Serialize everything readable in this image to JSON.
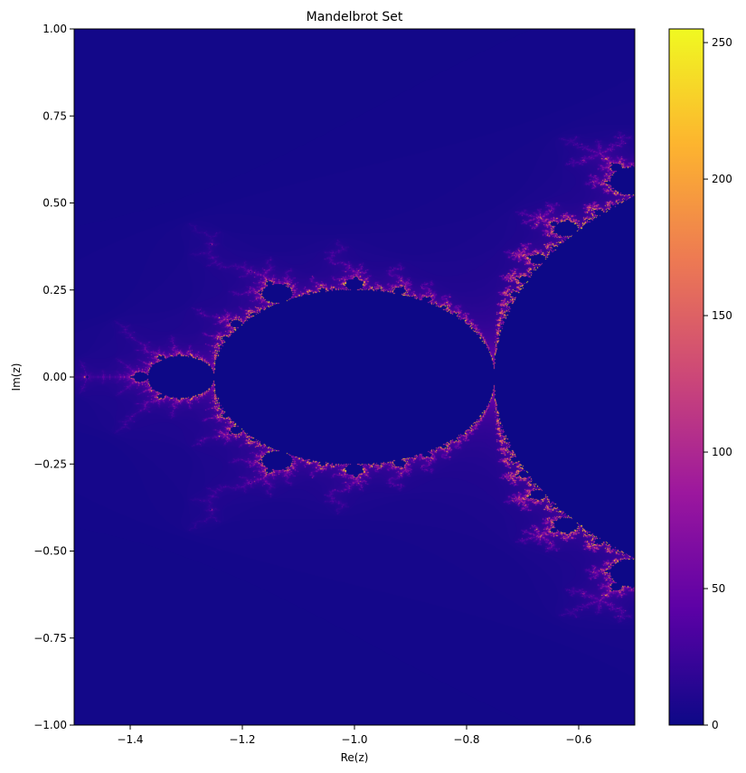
{
  "chart_data": {
    "type": "heatmap",
    "title": "Mandelbrot Set",
    "xlabel": "Re(z)",
    "ylabel": "Im(z)",
    "xlim": [
      -1.5,
      -0.5
    ],
    "ylim": [
      -1.0,
      1.0
    ],
    "x_ticks": [
      {
        "value": -1.4,
        "label": "−1.4"
      },
      {
        "value": -1.2,
        "label": "−1.2"
      },
      {
        "value": -1.0,
        "label": "−1.0"
      },
      {
        "value": -0.8,
        "label": "−0.8"
      },
      {
        "value": -0.6,
        "label": "−0.6"
      }
    ],
    "y_ticks": [
      {
        "value": 1.0,
        "label": "1.00"
      },
      {
        "value": 0.75,
        "label": "0.75"
      },
      {
        "value": 0.5,
        "label": "0.50"
      },
      {
        "value": 0.25,
        "label": "0.25"
      },
      {
        "value": 0.0,
        "label": "0.00"
      },
      {
        "value": -0.25,
        "label": "−0.25"
      },
      {
        "value": -0.5,
        "label": "−0.50"
      },
      {
        "value": -0.75,
        "label": "−0.75"
      },
      {
        "value": -1.0,
        "label": "−1.00"
      }
    ],
    "colormap": "plasma",
    "colorbar": {
      "range": [
        0,
        255
      ],
      "ticks": [
        {
          "value": 0,
          "label": "0"
        },
        {
          "value": 50,
          "label": "50"
        },
        {
          "value": 100,
          "label": "100"
        },
        {
          "value": 150,
          "label": "150"
        },
        {
          "value": 200,
          "label": "200"
        },
        {
          "value": 250,
          "label": "250"
        }
      ]
    },
    "max_iterations": 255,
    "grid": false
  },
  "colors": {
    "background": "#0d0887",
    "colormap_stops": [
      "#0d0887",
      "#5c01a6",
      "#9c179e",
      "#cc4778",
      "#ed7953",
      "#fdb42f",
      "#f0f921"
    ]
  }
}
